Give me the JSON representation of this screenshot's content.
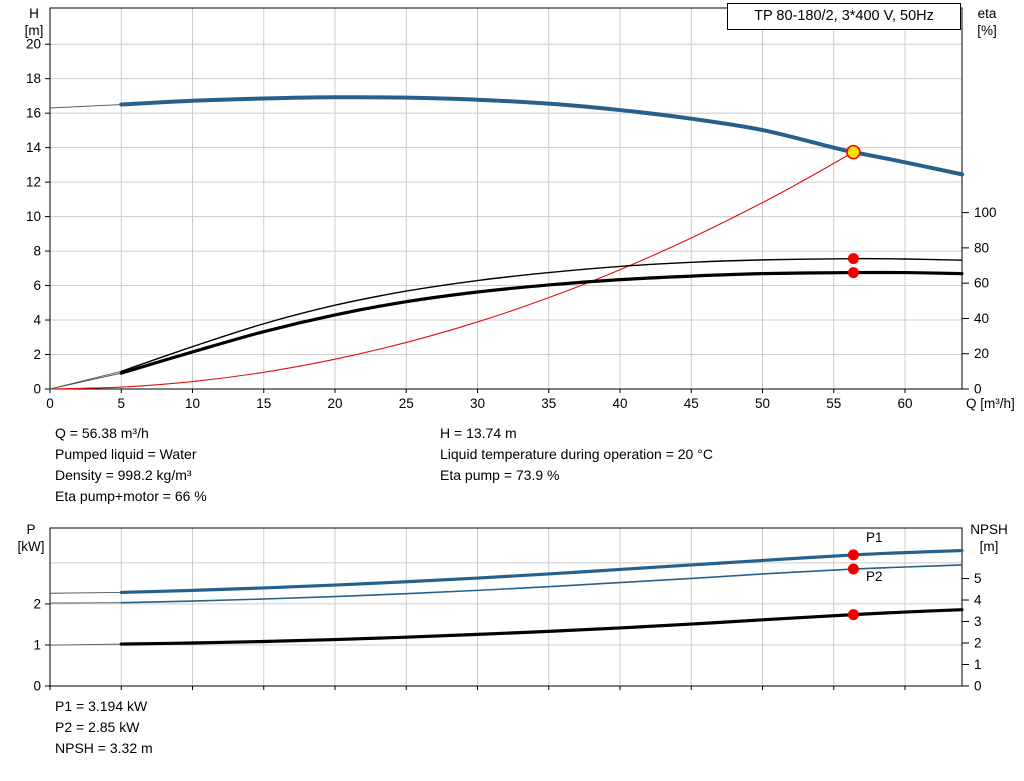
{
  "colors": {
    "curve_blue": "#26618e",
    "curve_red": "#e01010",
    "marker_red": "#ee0000",
    "marker_yellow": "#ffe000",
    "grid": "#cccccc",
    "lead": "#555555",
    "black": "#000000"
  },
  "info_top": {
    "col1": [
      "Q = 56.38 m³/h",
      "Pumped liquid = Water",
      "Density = 998.2 kg/m³",
      "Eta pump+motor = 66 %"
    ],
    "col2": [
      "H = 13.74 m",
      "Liquid temperature during operation = 20 °C",
      "Eta pump = 73.9 %"
    ]
  },
  "info_bottom": [
    "P1 = 3.194 kW",
    "P2 = 2.85 kW",
    "NPSH = 3.32 m"
  ],
  "chart_data": [
    {
      "id": "qh_eta",
      "type": "line",
      "title": "TP 80-180/2, 3*400 V, 50Hz",
      "x_axis": {
        "label": "Q [m³/h]",
        "min": 0,
        "max": 64,
        "ticks": [
          0,
          5,
          10,
          15,
          20,
          25,
          30,
          35,
          40,
          45,
          50,
          55,
          60
        ],
        "show_labels": true
      },
      "left_axis": {
        "label": "H [m]",
        "label_lines": [
          "H",
          "[m]"
        ],
        "min": 0,
        "max": 22.1,
        "ticks": [
          0,
          2,
          4,
          6,
          8,
          10,
          12,
          14,
          16,
          18,
          20
        ],
        "grid": [
          2,
          4,
          6,
          8,
          10,
          12,
          14,
          16,
          18,
          20
        ]
      },
      "right_axis": {
        "label": "eta [%]",
        "label_lines": [
          "eta",
          "[%]"
        ],
        "min": 0,
        "max": 216,
        "ticks": [
          0,
          20,
          40,
          60,
          80,
          100
        ]
      },
      "series": [
        {
          "name": "head-curve",
          "axis": "left",
          "color": "blue",
          "width": 4,
          "lead": [
            [
              0,
              16.3
            ],
            [
              5,
              16.5
            ]
          ],
          "points": [
            [
              5,
              16.5
            ],
            [
              10,
              16.72
            ],
            [
              15,
              16.85
            ],
            [
              20,
              16.92
            ],
            [
              25,
              16.9
            ],
            [
              30,
              16.78
            ],
            [
              35,
              16.55
            ],
            [
              40,
              16.18
            ],
            [
              45,
              15.68
            ],
            [
              50,
              15.02
            ],
            [
              55,
              14.0
            ],
            [
              56.38,
              13.74
            ],
            [
              60,
              13.15
            ],
            [
              64,
              12.45
            ]
          ]
        },
        {
          "name": "system-curve",
          "axis": "left",
          "color": "red",
          "width": 1.1,
          "points": [
            [
              0,
              0
            ],
            [
              5,
              0.11
            ],
            [
              10,
              0.43
            ],
            [
              15,
              0.97
            ],
            [
              20,
              1.73
            ],
            [
              25,
              2.7
            ],
            [
              30,
              3.89
            ],
            [
              35,
              5.3
            ],
            [
              40,
              6.92
            ],
            [
              45,
              8.76
            ],
            [
              50,
              10.81
            ],
            [
              53,
              12.15
            ],
            [
              56.38,
              13.74
            ]
          ]
        },
        {
          "name": "eta-pump-curve",
          "axis": "right",
          "color": "black",
          "width": 1.4,
          "lead": [
            [
              0,
              0
            ],
            [
              5,
              10
            ]
          ],
          "points": [
            [
              5,
              10
            ],
            [
              10,
              24
            ],
            [
              15,
              37
            ],
            [
              20,
              47.5
            ],
            [
              25,
              55.5
            ],
            [
              30,
              61.5
            ],
            [
              35,
              66
            ],
            [
              40,
              69.5
            ],
            [
              45,
              71.8
            ],
            [
              50,
              73.2
            ],
            [
              56.38,
              73.9
            ],
            [
              60,
              73.7
            ],
            [
              64,
              73
            ]
          ]
        },
        {
          "name": "eta-pump-motor-curve",
          "axis": "right",
          "color": "black",
          "width": 3.2,
          "lead": [
            [
              0,
              0
            ],
            [
              5,
              9
            ]
          ],
          "points": [
            [
              5,
              9
            ],
            [
              10,
              21
            ],
            [
              15,
              32.5
            ],
            [
              20,
              42
            ],
            [
              25,
              49.5
            ],
            [
              30,
              55
            ],
            [
              35,
              59
            ],
            [
              40,
              62
            ],
            [
              45,
              64
            ],
            [
              50,
              65.4
            ],
            [
              56.38,
              66
            ],
            [
              60,
              66
            ],
            [
              64,
              65.4
            ]
          ]
        }
      ],
      "markers": [
        {
          "name": "duty-point",
          "axis": "left",
          "x": 56.38,
          "y": 13.74,
          "style": "yellow"
        },
        {
          "name": "eta-pump-point",
          "axis": "right",
          "x": 56.38,
          "y": 73.9,
          "style": "red"
        },
        {
          "name": "eta-pump-motor-point",
          "axis": "right",
          "x": 56.38,
          "y": 66,
          "style": "red"
        }
      ]
    },
    {
      "id": "power_npsh",
      "type": "line",
      "title": "",
      "x_axis": {
        "label": "",
        "min": 0,
        "max": 64,
        "ticks": [
          0,
          5,
          10,
          15,
          20,
          25,
          30,
          35,
          40,
          45,
          50,
          55,
          60
        ],
        "show_labels": false
      },
      "left_axis": {
        "label": "P [kW]",
        "label_lines": [
          "P",
          "[kW]"
        ],
        "min": 0,
        "max": 3.85,
        "ticks": [
          0,
          1,
          2
        ],
        "grid": [
          1,
          2,
          3
        ]
      },
      "right_axis": {
        "label": "NPSH [m]",
        "label_lines": [
          "NPSH",
          "[m]"
        ],
        "min": 0,
        "max": 7.35,
        "ticks": [
          0,
          1,
          2,
          3,
          4,
          5
        ]
      },
      "series": [
        {
          "name": "P1",
          "axis": "left",
          "color": "blue",
          "width": 3.2,
          "end_label": "P1",
          "lead": [
            [
              0,
              2.26
            ],
            [
              5,
              2.28
            ]
          ],
          "points": [
            [
              5,
              2.28
            ],
            [
              10,
              2.33
            ],
            [
              15,
              2.39
            ],
            [
              20,
              2.46
            ],
            [
              25,
              2.54
            ],
            [
              30,
              2.63
            ],
            [
              35,
              2.73
            ],
            [
              40,
              2.84
            ],
            [
              45,
              2.95
            ],
            [
              50,
              3.06
            ],
            [
              56.38,
              3.194
            ],
            [
              60,
              3.25
            ],
            [
              64,
              3.3
            ]
          ]
        },
        {
          "name": "P2",
          "axis": "left",
          "color": "blue",
          "width": 1.6,
          "end_label": "P2",
          "lead": [
            [
              0,
              2.02
            ],
            [
              5,
              2.03
            ]
          ],
          "points": [
            [
              5,
              2.03
            ],
            [
              10,
              2.07
            ],
            [
              15,
              2.12
            ],
            [
              20,
              2.18
            ],
            [
              25,
              2.25
            ],
            [
              30,
              2.33
            ],
            [
              35,
              2.42
            ],
            [
              40,
              2.52
            ],
            [
              45,
              2.62
            ],
            [
              50,
              2.73
            ],
            [
              56.38,
              2.85
            ],
            [
              60,
              2.9
            ],
            [
              64,
              2.95
            ]
          ]
        },
        {
          "name": "NPSH-curve",
          "axis": "right",
          "color": "black",
          "width": 3.2,
          "lead": [
            [
              0,
              1.9
            ],
            [
              5,
              1.95
            ]
          ],
          "points": [
            [
              5,
              1.95
            ],
            [
              10,
              2.0
            ],
            [
              15,
              2.07
            ],
            [
              20,
              2.16
            ],
            [
              25,
              2.27
            ],
            [
              30,
              2.4
            ],
            [
              35,
              2.54
            ],
            [
              40,
              2.7
            ],
            [
              45,
              2.88
            ],
            [
              50,
              3.08
            ],
            [
              56.38,
              3.32
            ],
            [
              60,
              3.44
            ],
            [
              64,
              3.55
            ]
          ]
        }
      ],
      "markers": [
        {
          "name": "p1-point",
          "axis": "left",
          "x": 56.38,
          "y": 3.194,
          "style": "red"
        },
        {
          "name": "p2-point",
          "axis": "left",
          "x": 56.38,
          "y": 2.85,
          "style": "red"
        },
        {
          "name": "npsh-point",
          "axis": "right",
          "x": 56.38,
          "y": 3.32,
          "style": "red"
        }
      ]
    }
  ]
}
